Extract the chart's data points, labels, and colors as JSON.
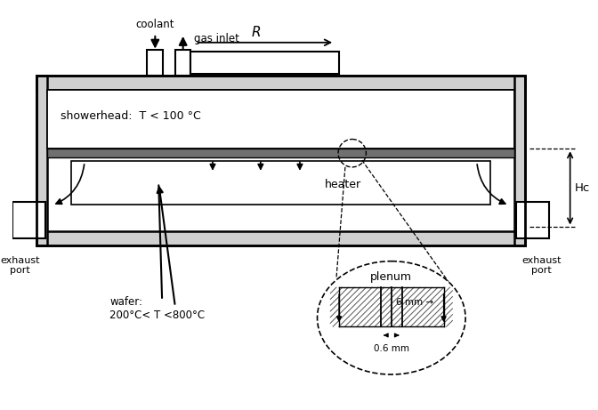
{
  "bg_color": "#ffffff",
  "line_color": "#000000",
  "labels": {
    "coolant": "coolant",
    "gas_inlet": "gas inlet",
    "R": "R",
    "showerhead": "showerhead:  T < 100 °C",
    "heater": "heater",
    "wafer": "wafer:\n200°C< T <800°C",
    "plenum": "plenum",
    "dim1": "6 mm →",
    "dim2": "0.6 mm",
    "exhaust_left": "exhaust\nport",
    "exhaust_right": "exhaust\nport",
    "Hc": "Hᴄ"
  }
}
